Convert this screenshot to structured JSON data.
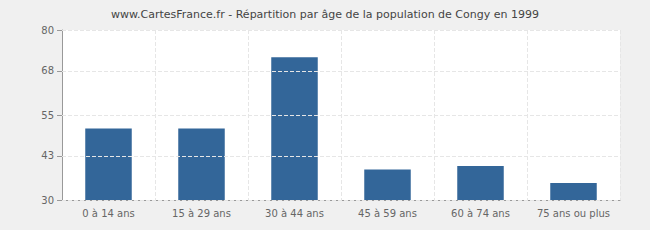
{
  "chart_data": {
    "type": "bar",
    "title": "www.CartesFrance.fr - Répartition par âge de la population de Congy en 1999",
    "categories": [
      "0 à 14 ans",
      "15 à 29 ans",
      "30 à 44 ans",
      "45 à 59 ans",
      "60 à 74 ans",
      "75 ans ou plus"
    ],
    "values": [
      51,
      51,
      72,
      39,
      40,
      35
    ],
    "color": "#336699",
    "ylim": [
      30,
      80
    ],
    "yticks": [
      30,
      43,
      55,
      68,
      80
    ],
    "grid": true
  }
}
